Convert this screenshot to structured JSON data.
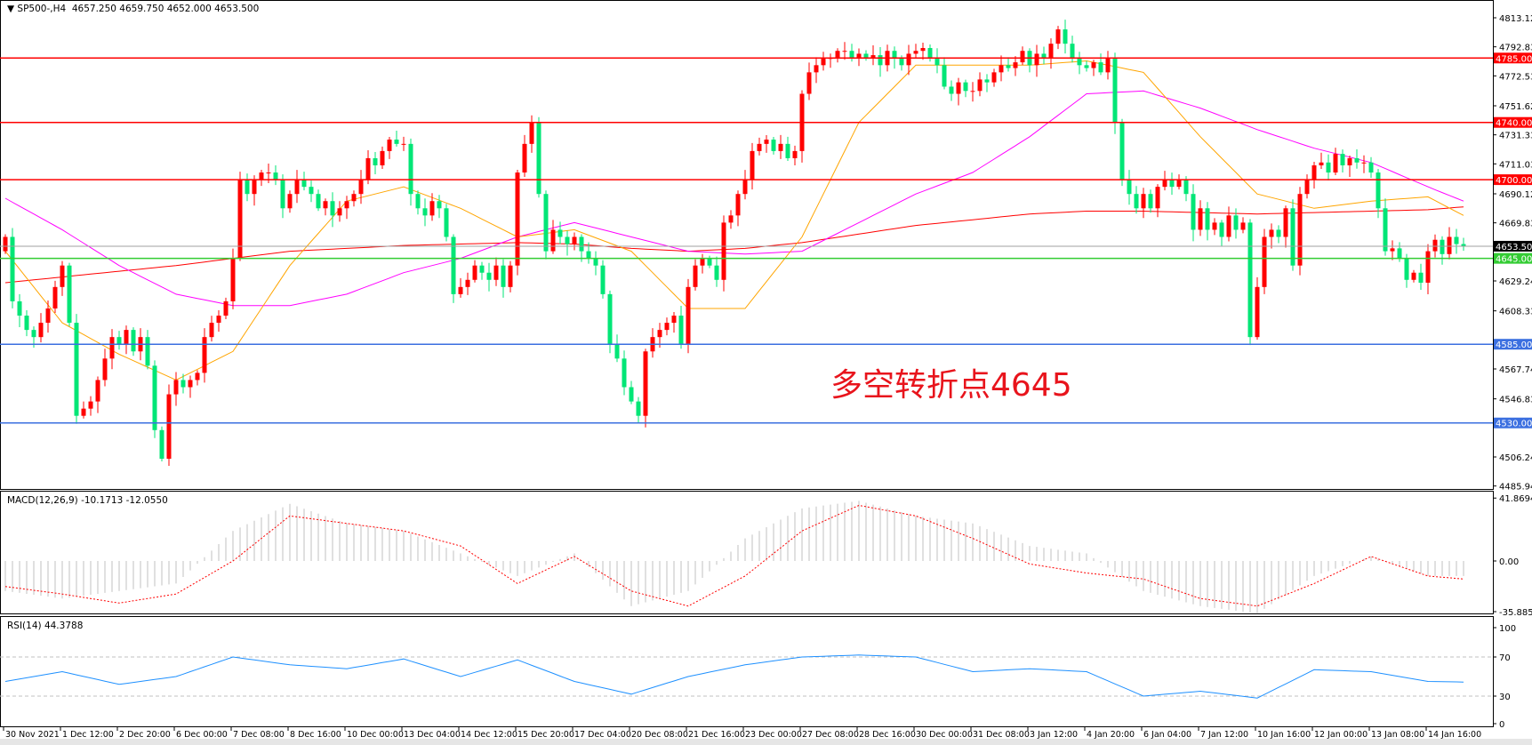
{
  "header": {
    "arrow_icon": "triangle-down-icon",
    "symbol": "SP500-,H4",
    "ohlc": "4657.250 4659.750 4652.000 4653.500"
  },
  "macd_label": "MACD(12,26,9) -10.1713 -12.0550",
  "rsi_label": "RSI(14) 44.3788",
  "annotation": "多空转折点4645",
  "colors": {
    "bull": "#ff0000",
    "bear": "#00e676",
    "ma_fast": "#ffa500",
    "ma_mid": "#ff00ff",
    "ma_slow": "#ff0000",
    "resistance": "#ff0000",
    "pivot": "#33cc33",
    "support": "#3b6fe0",
    "rsi": "#1e90ff",
    "macd_signal": "#ff0000",
    "macd_hist": "#c0c0c0"
  },
  "chart_data": {
    "type": "candlestick",
    "symbol": "SP500-",
    "timeframe": "H4",
    "ylim": [
      4485.945,
      4813.125
    ],
    "price_ticks": [
      "4813.125",
      "4792.830",
      "4772.535",
      "4751.625",
      "4731.330",
      "4711.035",
      "4690.125",
      "4669.830",
      "4629.240",
      "4608.330",
      "4567.740",
      "4546.830",
      "4506.240",
      "4485.945"
    ],
    "time_labels": [
      "30 Nov 2021",
      "1 Dec 12:00",
      "2 Dec 20:00",
      "6 Dec 00:00",
      "7 Dec 08:00",
      "8 Dec 16:00",
      "10 Dec 00:00",
      "13 Dec 04:00",
      "14 Dec 12:00",
      "15 Dec 20:00",
      "17 Dec 04:00",
      "20 Dec 08:00",
      "21 Dec 16:00",
      "23 Dec 00:00",
      "27 Dec 08:00",
      "28 Dec 16:00",
      "30 Dec 00:00",
      "31 Dec 08:00",
      "3 Jan 12:00",
      "4 Jan 20:00",
      "6 Jan 04:00",
      "7 Jan 12:00",
      "10 Jan 16:00",
      "12 Jan 00:00",
      "13 Jan 08:00",
      "14 Jan 16:00"
    ],
    "close": [
      4660,
      4615,
      4605,
      4595,
      4590,
      4600,
      4610,
      4625,
      4640,
      4600,
      4535,
      4540,
      4545,
      4560,
      4575,
      4590,
      4585,
      4595,
      4580,
      4590,
      4570,
      4525,
      4505,
      4550,
      4560,
      4555,
      4560,
      4565,
      4590,
      4600,
      4605,
      4615,
      4645,
      4700,
      4690,
      4700,
      4705,
      4705,
      4700,
      4680,
      4690,
      4700,
      4695,
      4690,
      4680,
      4685,
      4675,
      4680,
      4685,
      4690,
      4700,
      4715,
      4710,
      4720,
      4728,
      4725,
      4725,
      4690,
      4680,
      4675,
      4685,
      4680,
      4660,
      4620,
      4625,
      4630,
      4640,
      4635,
      4630,
      4640,
      4625,
      4640,
      4705,
      4725,
      4740,
      4690,
      4650,
      4665,
      4660,
      4655,
      4660,
      4650,
      4645,
      4640,
      4620,
      4585,
      4575,
      4555,
      4545,
      4535,
      4580,
      4590,
      4595,
      4600,
      4605,
      4585,
      4625,
      4640,
      4645,
      4640,
      4630,
      4670,
      4675,
      4690,
      4700,
      4720,
      4725,
      4728,
      4720,
      4725,
      4715,
      4720,
      4760,
      4775,
      4780,
      4785,
      4785,
      4790,
      4790,
      4785,
      4788,
      4785,
      4787,
      4780,
      4790,
      4785,
      4780,
      4788,
      4790,
      4792,
      4785,
      4780,
      4765,
      4760,
      4768,
      4762,
      4762,
      4770,
      4768,
      4775,
      4780,
      4778,
      4782,
      4790,
      4780,
      4788,
      4785,
      4795,
      4805,
      4795,
      4785,
      4780,
      4778,
      4782,
      4775,
      4785,
      4740,
      4700,
      4690,
      4680,
      4690,
      4680,
      4695,
      4700,
      4695,
      4700,
      4690,
      4665,
      4680,
      4665,
      4670,
      4660,
      4675,
      4665,
      4670,
      4590,
      4625,
      4660,
      4665,
      4660,
      4680,
      4640,
      4690,
      4700,
      4710,
      4712,
      4705,
      4718,
      4710,
      4715,
      4712,
      4712,
      4705,
      4680,
      4650,
      4652,
      4645,
      4630,
      4635,
      4628,
      4650,
      4658,
      4648,
      4660,
      4655,
      4653.5
    ],
    "first_open": 4650,
    "sampled_at": "each time label and last bar",
    "ma_fast": [
      4650,
      4600,
      4578,
      4560,
      4580,
      4640,
      4685,
      4695,
      4680,
      4660,
      4665,
      4650,
      4610,
      4610,
      4660,
      4740,
      4780,
      4780,
      4780,
      4783,
      4775,
      4730,
      4690,
      4680,
      4685,
      4688,
      4675
    ],
    "ma_mid": [
      4687,
      4665,
      4640,
      4620,
      4612,
      4612,
      4620,
      4635,
      4645,
      4660,
      4670,
      4660,
      4650,
      4648,
      4650,
      4670,
      4690,
      4705,
      4730,
      4760,
      4762,
      4750,
      4735,
      4722,
      4712,
      4695,
      4685
    ],
    "ma_slow": [
      4628,
      4632,
      4636,
      4640,
      4645,
      4650,
      4652,
      4654,
      4655,
      4656,
      4655,
      4652,
      4650,
      4652,
      4656,
      4662,
      4668,
      4672,
      4676,
      4678,
      4678,
      4677,
      4676,
      4677,
      4678,
      4679,
      4681
    ],
    "levels": [
      {
        "value": 4785,
        "label": "4785.000",
        "kind": "resistance"
      },
      {
        "value": 4740,
        "label": "4740.000",
        "kind": "resistance"
      },
      {
        "value": 4700,
        "label": "4700.000",
        "kind": "resistance"
      },
      {
        "value": 4645,
        "label": "4645.000",
        "kind": "pivot"
      },
      {
        "value": 4585,
        "label": "4585.000",
        "kind": "support"
      },
      {
        "value": 4530,
        "label": "4530.000",
        "kind": "support"
      }
    ],
    "current_price": {
      "value": 4653.5,
      "label": "4653.500"
    },
    "macd": {
      "ylim": [
        -35.8856,
        41.8694
      ],
      "ticks": [
        "41.8694",
        "0.00",
        "-35.8856"
      ],
      "histogram": [
        -20,
        -25,
        -20,
        -15,
        20,
        38,
        25,
        20,
        5,
        -10,
        5,
        -30,
        -20,
        15,
        35,
        40,
        30,
        25,
        10,
        5,
        -20,
        -30,
        -35,
        -10,
        3,
        -10,
        -10
      ],
      "signal": [
        -17,
        -22,
        -28,
        -22,
        0,
        30,
        25,
        20,
        10,
        -15,
        3,
        -20,
        -30,
        -10,
        20,
        37,
        30,
        15,
        -2,
        -8,
        -12,
        -25,
        -30,
        -15,
        3,
        -10,
        -12
      ]
    },
    "rsi": {
      "ylim": [
        0,
        100
      ],
      "ticks": [
        "100",
        "70",
        "30",
        "0"
      ],
      "levels": [
        70,
        30
      ],
      "values": [
        45,
        55,
        42,
        50,
        70,
        62,
        58,
        68,
        50,
        67,
        45,
        32,
        50,
        62,
        70,
        72,
        70,
        55,
        58,
        55,
        30,
        35,
        28,
        57,
        55,
        45,
        44.4
      ]
    }
  }
}
